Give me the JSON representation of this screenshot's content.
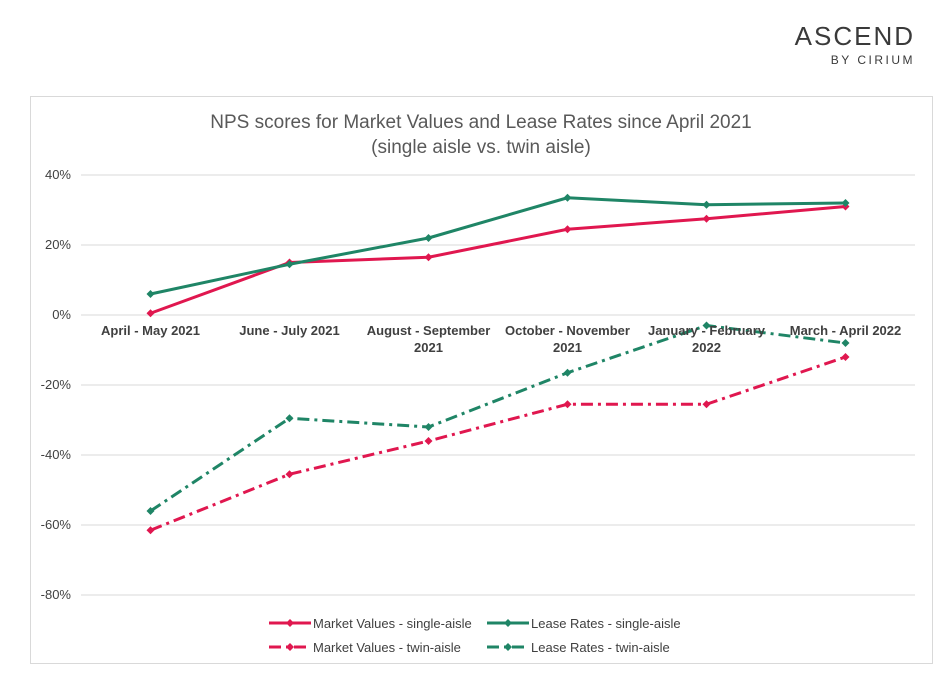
{
  "brand": {
    "name": "ASCEND",
    "sub": "BY CIRIUM"
  },
  "chart_data": {
    "type": "line",
    "title": "NPS scores for Market Values and Lease Rates since April 2021",
    "subtitle": "(single aisle vs. twin aisle)",
    "categories": [
      [
        "April - May 2021"
      ],
      [
        "June - July 2021"
      ],
      [
        "August - September",
        "2021"
      ],
      [
        "October - November",
        "2021"
      ],
      [
        "January - February",
        "2022"
      ],
      [
        "March - April 2022"
      ]
    ],
    "ylim": [
      -80,
      40
    ],
    "yticks": [
      40,
      20,
      0,
      -20,
      -40,
      -60,
      -80
    ],
    "ytick_labels": [
      "40%",
      "20%",
      "0%",
      "-20%",
      "-40%",
      "-60%",
      "-80%"
    ],
    "grid": true,
    "legend_position": "bottom",
    "series": [
      {
        "name": "Market Values - single-aisle",
        "color": "#e0174f",
        "style": "solid",
        "values": [
          0.5,
          15,
          16.5,
          24.5,
          27.5,
          31
        ]
      },
      {
        "name": "Lease Rates - single-aisle",
        "color": "#1f8566",
        "style": "solid",
        "values": [
          6,
          14.5,
          22,
          33.5,
          31.5,
          32
        ]
      },
      {
        "name": "Market Values - twin-aisle",
        "color": "#e0174f",
        "style": "dashdot",
        "values": [
          -61.5,
          -45.5,
          -36,
          -25.5,
          -25.5,
          -12
        ]
      },
      {
        "name": "Lease Rates - twin-aisle",
        "color": "#1f8566",
        "style": "dashdot",
        "values": [
          -56,
          -29.5,
          -32,
          -16.5,
          -3,
          -8
        ]
      }
    ]
  }
}
